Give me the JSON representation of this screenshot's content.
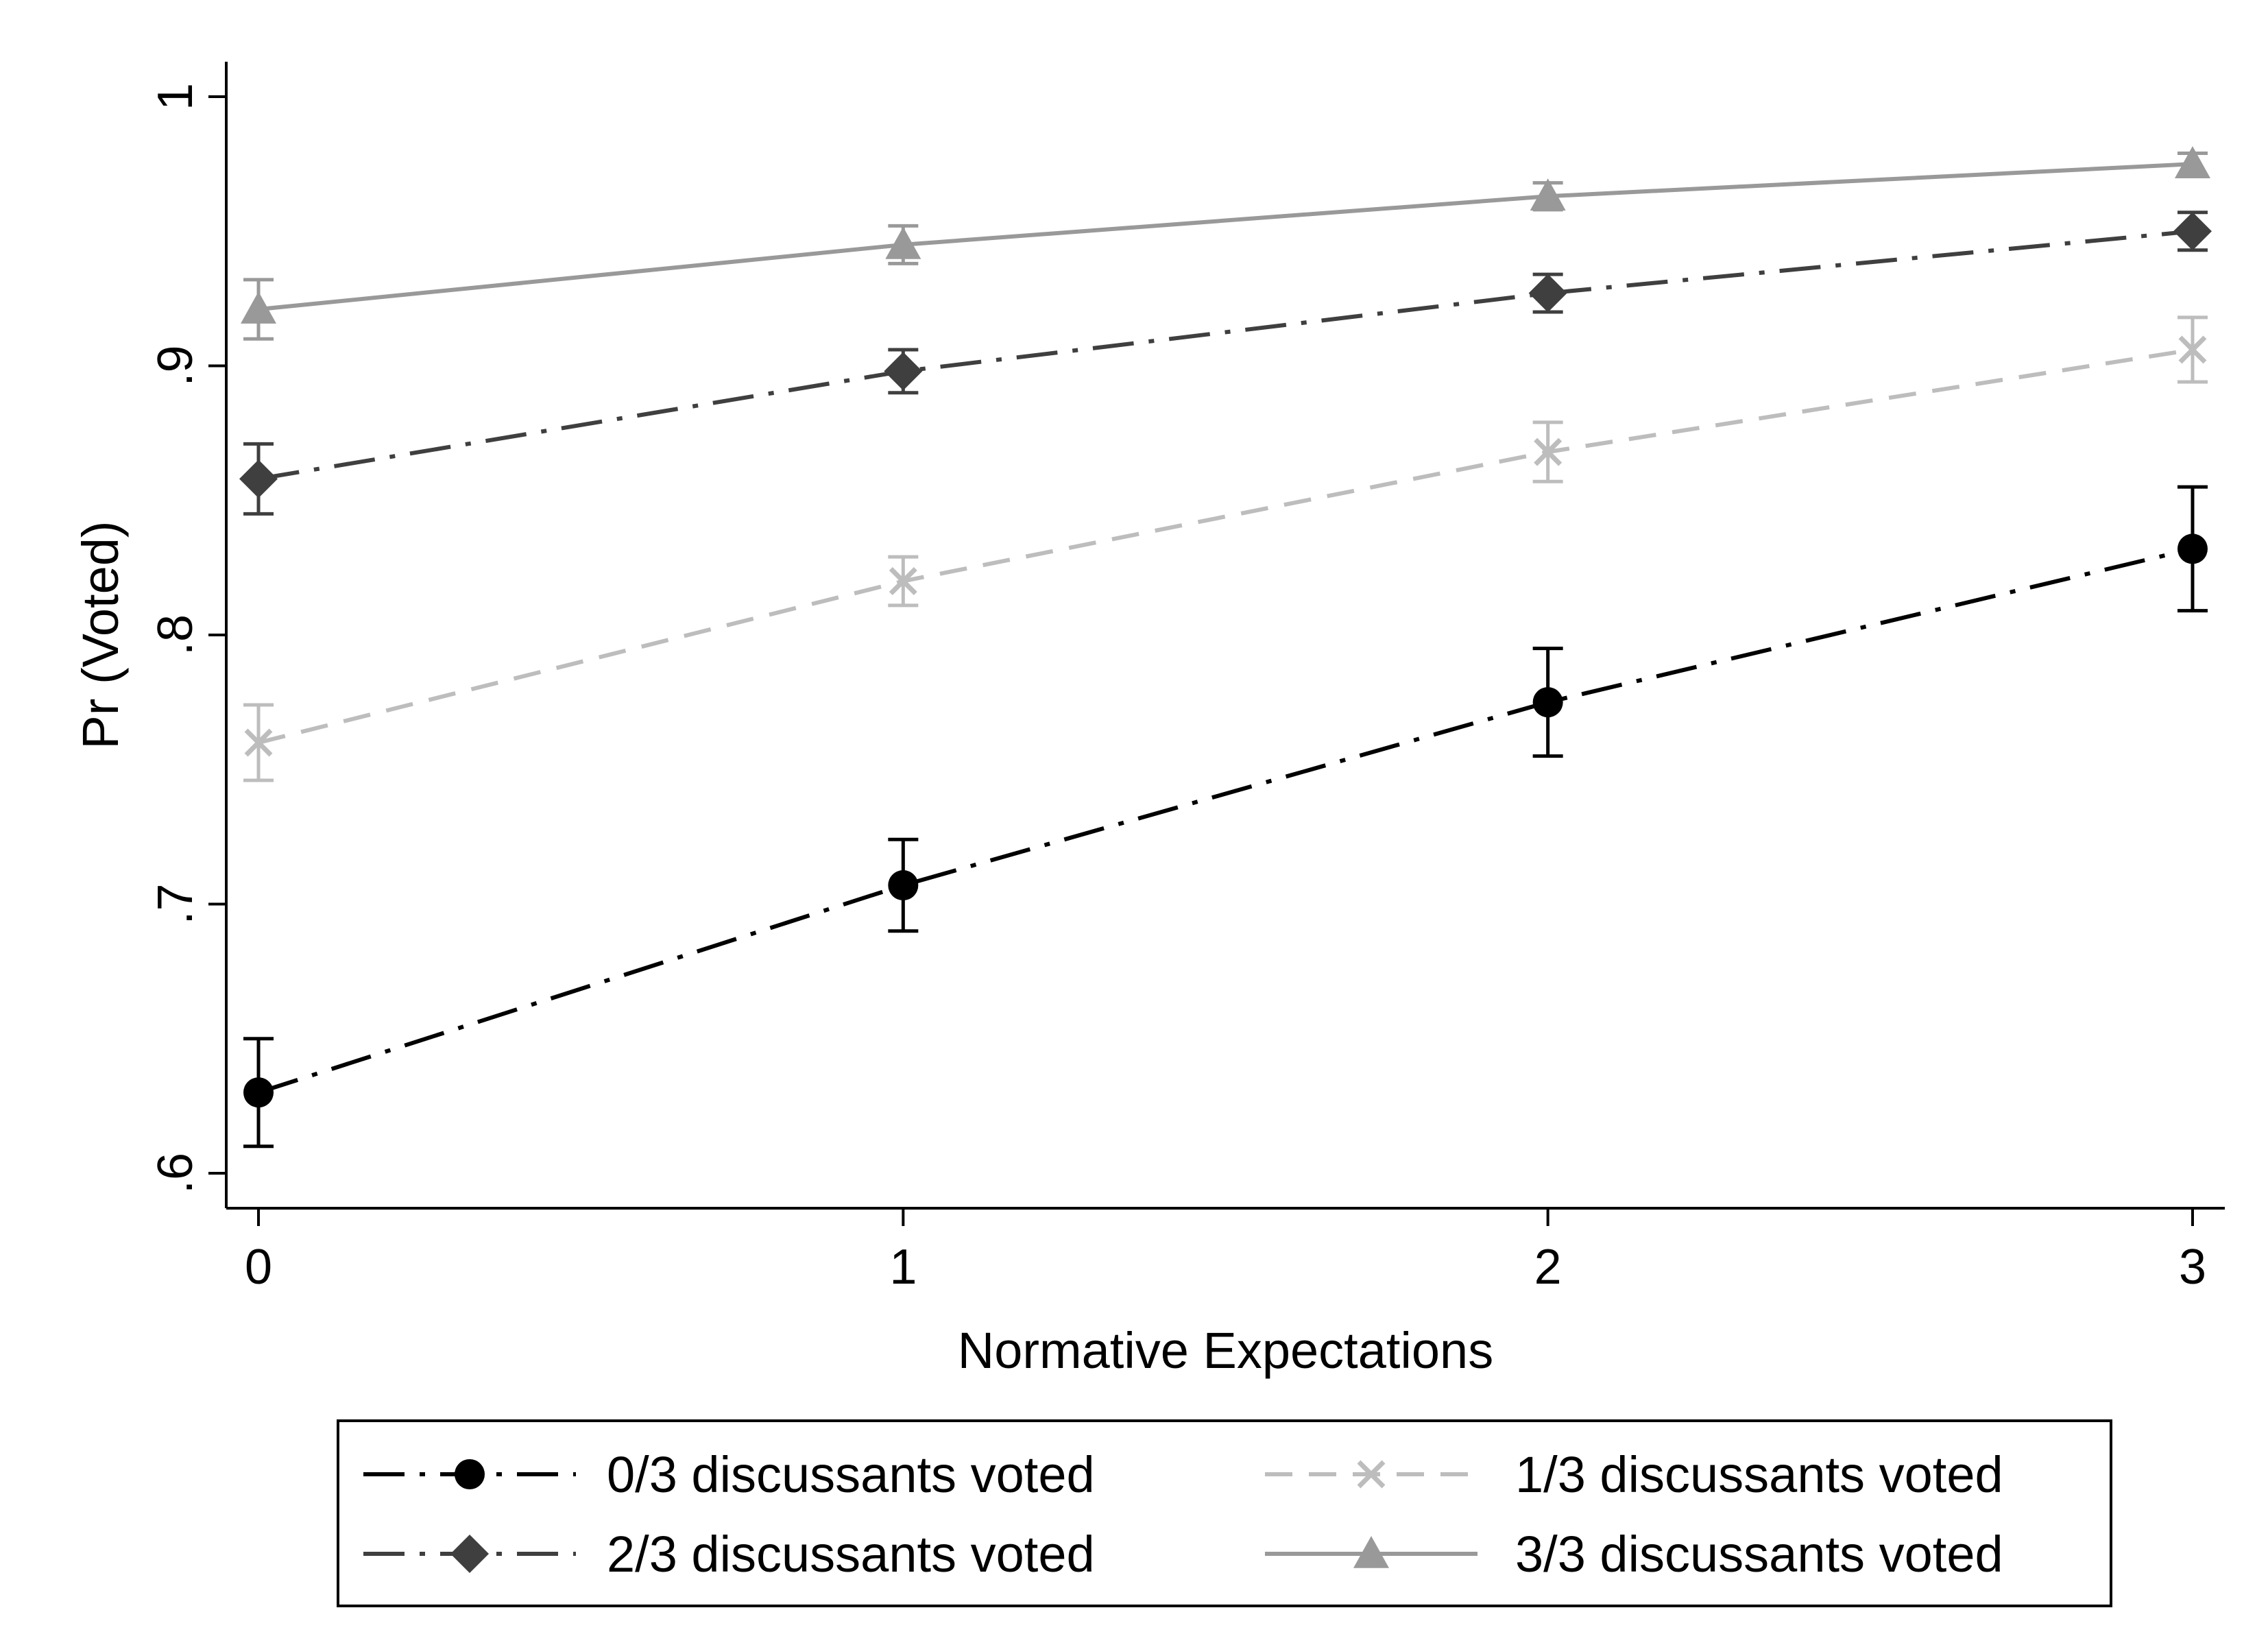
{
  "chart_data": {
    "type": "line",
    "xlabel": "Normative Expectations",
    "ylabel": "Pr (Voted)",
    "x": [
      0,
      1,
      2,
      3
    ],
    "xticks": [
      "0",
      "1",
      "2",
      "3"
    ],
    "yticks": [
      {
        "value": 0.6,
        "label": ".6"
      },
      {
        "value": 0.7,
        "label": ".7"
      },
      {
        "value": 0.8,
        "label": ".8"
      },
      {
        "value": 0.9,
        "label": ".9"
      },
      {
        "value": 1.0,
        "label": "1"
      }
    ],
    "xlim": [
      -0.05,
      3.05
    ],
    "ylim": [
      0.587,
      1.013
    ],
    "grid": false,
    "legend_position": "bottom",
    "series": [
      {
        "name": "0/3 discussants voted",
        "values": [
          0.63,
          0.707,
          0.775,
          0.832
        ],
        "ci_low": [
          0.61,
          0.69,
          0.755,
          0.809
        ],
        "ci_high": [
          0.65,
          0.724,
          0.795,
          0.855
        ],
        "color": "#000000",
        "marker": "circle",
        "line_style": "longdash-dot"
      },
      {
        "name": "1/3 discussants voted",
        "values": [
          0.76,
          0.82,
          0.868,
          0.906
        ],
        "ci_low": [
          0.746,
          0.811,
          0.857,
          0.894
        ],
        "ci_high": [
          0.774,
          0.829,
          0.879,
          0.918
        ],
        "color": "#bdbdbd",
        "marker": "x",
        "line_style": "dash"
      },
      {
        "name": "2/3 discussants voted",
        "values": [
          0.858,
          0.898,
          0.927,
          0.95
        ],
        "ci_low": [
          0.845,
          0.89,
          0.92,
          0.943
        ],
        "ci_high": [
          0.871,
          0.906,
          0.934,
          0.957
        ],
        "color": "#3f3f3f",
        "marker": "diamond",
        "line_style": "longdash-dot"
      },
      {
        "name": "3/3 discussants voted",
        "values": [
          0.921,
          0.945,
          0.963,
          0.975
        ],
        "ci_low": [
          0.91,
          0.938,
          0.958,
          0.971
        ],
        "ci_high": [
          0.932,
          0.952,
          0.968,
          0.979
        ],
        "color": "#999999",
        "marker": "triangle",
        "line_style": "solid"
      }
    ]
  }
}
